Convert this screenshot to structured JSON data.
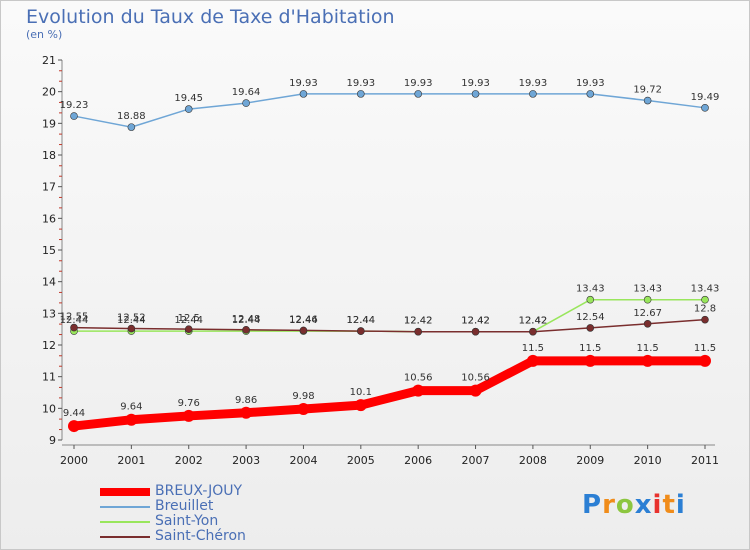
{
  "chart_data": {
    "type": "line",
    "title": "Evolution du Taux de Taxe d'Habitation",
    "subtitle": "(en %)",
    "xlabel": "",
    "ylabel": "(en %)",
    "categories": [
      "2000",
      "2001",
      "2002",
      "2003",
      "2004",
      "2005",
      "2006",
      "2007",
      "2008",
      "2009",
      "2010",
      "2011"
    ],
    "ylim": [
      9,
      21
    ],
    "yticks": [
      9,
      10,
      11,
      12,
      13,
      14,
      15,
      16,
      17,
      18,
      19,
      20,
      21
    ],
    "series": [
      {
        "name": "BREUX-JOUY",
        "color": "#ff0000",
        "values": [
          9.44,
          9.64,
          9.76,
          9.86,
          9.98,
          10.1,
          10.56,
          10.56,
          11.5,
          11.5,
          11.5,
          11.5
        ],
        "labels": [
          "9.44",
          "9.64",
          "9.76",
          "9.86",
          "9.98",
          "10.1",
          "10.56",
          "10.56",
          "11.5",
          "11.5",
          "11.5",
          "11.5"
        ]
      },
      {
        "name": "Breuillet",
        "color": "#6fa6d6",
        "values": [
          19.23,
          18.88,
          19.45,
          19.64,
          19.93,
          19.93,
          19.93,
          19.93,
          19.93,
          19.93,
          19.72,
          19.49
        ],
        "labels": [
          "19.23",
          "18.88",
          "19.45",
          "19.64",
          "19.93",
          "19.93",
          "19.93",
          "19.93",
          "19.93",
          "19.93",
          "19.72",
          "19.49"
        ]
      },
      {
        "name": "Saint-Yon",
        "color": "#99e65c",
        "values": [
          12.44,
          12.44,
          12.44,
          12.44,
          12.44,
          12.44,
          12.42,
          12.42,
          12.42,
          13.43,
          13.43,
          13.43
        ],
        "labels": [
          "12.44",
          "12.44",
          "12.44",
          "12.44",
          "12.44",
          "12.44",
          "12.42",
          "12.42",
          "12.42",
          "13.43",
          "13.43",
          "13.43"
        ]
      },
      {
        "name": "Saint-Chéron",
        "color": "#7a2e2e",
        "values": [
          12.55,
          12.52,
          12.5,
          12.48,
          12.46,
          12.44,
          12.42,
          12.42,
          12.42,
          12.54,
          12.67,
          12.8
        ],
        "labels": [
          "12.55",
          "12.52",
          "12.5",
          "12.48",
          "12.46",
          "12.44",
          "12.42",
          "12.42",
          "12.42",
          "12.54",
          "12.67",
          "12.8"
        ]
      }
    ],
    "legend": [
      "BREUX-JOUY",
      "Breuillet",
      "Saint-Yon",
      "Saint-Chéron"
    ],
    "grid": false
  },
  "brand": {
    "letters": [
      "P",
      "r",
      "o",
      "x",
      "i",
      "t",
      "i"
    ],
    "colors": [
      "#2b7fd4",
      "#f08c1a",
      "#8cc63f",
      "#2b7fd4",
      "#e8322e",
      "#f08c1a",
      "#2b7fd4"
    ]
  }
}
